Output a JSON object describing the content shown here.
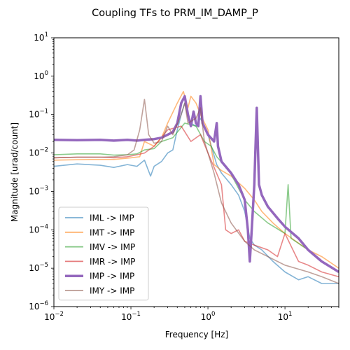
{
  "chart_data": {
    "type": "line",
    "title": "Coupling TFs to PRM_IM_DAMP_P",
    "xlabel": "Frequency [Hz]",
    "ylabel": "Magnitude [urad/count]",
    "xscale": "log",
    "yscale": "log",
    "xlim": [
      0.01,
      50
    ],
    "ylim": [
      1e-06,
      10
    ],
    "grid": false,
    "legend_position": "lower-left",
    "x_ticks": [
      {
        "value": 0.01,
        "label": "10",
        "exp": "−2"
      },
      {
        "value": 0.1,
        "label": "10",
        "exp": "−1"
      },
      {
        "value": 1,
        "label": "10",
        "exp": "0"
      },
      {
        "value": 10,
        "label": "10",
        "exp": "1"
      }
    ],
    "y_ticks": [
      {
        "value": 1e-06,
        "label": "10",
        "exp": "−6"
      },
      {
        "value": 1e-05,
        "label": "10",
        "exp": "−5"
      },
      {
        "value": 0.0001,
        "label": "10",
        "exp": "−4"
      },
      {
        "value": 0.001,
        "label": "10",
        "exp": "−3"
      },
      {
        "value": 0.01,
        "label": "10",
        "exp": "−2"
      },
      {
        "value": 0.1,
        "label": "10",
        "exp": "−1"
      },
      {
        "value": 1,
        "label": "10",
        "exp": "0"
      },
      {
        "value": 10,
        "label": "10",
        "exp": "1"
      }
    ],
    "series": [
      {
        "name": "IML -> IMP",
        "color": "#1f77b4",
        "bold": false,
        "points": [
          [
            0.01,
            0.0045
          ],
          [
            0.02,
            0.0052
          ],
          [
            0.04,
            0.0048
          ],
          [
            0.06,
            0.0042
          ],
          [
            0.09,
            0.005
          ],
          [
            0.12,
            0.0045
          ],
          [
            0.15,
            0.0065
          ],
          [
            0.18,
            0.0025
          ],
          [
            0.2,
            0.0045
          ],
          [
            0.25,
            0.006
          ],
          [
            0.3,
            0.01
          ],
          [
            0.35,
            0.012
          ],
          [
            0.4,
            0.04
          ],
          [
            0.45,
            0.1
          ],
          [
            0.5,
            0.2
          ],
          [
            0.6,
            0.06
          ],
          [
            0.7,
            0.05
          ],
          [
            0.8,
            0.08
          ],
          [
            1.0,
            0.03
          ],
          [
            1.3,
            0.005
          ],
          [
            1.5,
            0.003
          ],
          [
            2,
            0.0015
          ],
          [
            2.5,
            0.0008
          ],
          [
            3,
            0.0003
          ],
          [
            3.5,
            6e-05
          ],
          [
            4,
            4e-05
          ],
          [
            5,
            3e-05
          ],
          [
            7,
            1.5e-05
          ],
          [
            10,
            8e-06
          ],
          [
            15,
            5e-06
          ],
          [
            20,
            6e-06
          ],
          [
            30,
            4e-06
          ],
          [
            50,
            4e-06
          ]
        ]
      },
      {
        "name": "IMT -> IMP",
        "color": "#ff7f0e",
        "bold": false,
        "points": [
          [
            0.01,
            0.0065
          ],
          [
            0.03,
            0.0068
          ],
          [
            0.06,
            0.0068
          ],
          [
            0.1,
            0.0075
          ],
          [
            0.13,
            0.008
          ],
          [
            0.15,
            0.02
          ],
          [
            0.2,
            0.015
          ],
          [
            0.25,
            0.025
          ],
          [
            0.3,
            0.06
          ],
          [
            0.4,
            0.2
          ],
          [
            0.48,
            0.4
          ],
          [
            0.55,
            0.15
          ],
          [
            0.6,
            0.3
          ],
          [
            0.7,
            0.2
          ],
          [
            0.8,
            0.1
          ],
          [
            1.0,
            0.04
          ],
          [
            1.2,
            0.005
          ],
          [
            1.5,
            0.0035
          ],
          [
            2,
            0.0025
          ],
          [
            3,
            0.0012
          ],
          [
            4,
            0.0006
          ],
          [
            5,
            0.0003
          ],
          [
            7,
            0.00015
          ],
          [
            10,
            8e-05
          ],
          [
            20,
            3e-05
          ],
          [
            30,
            2e-05
          ],
          [
            50,
            1e-05
          ]
        ]
      },
      {
        "name": "IMV -> IMP",
        "color": "#2ca02c",
        "bold": false,
        "points": [
          [
            0.01,
            0.009
          ],
          [
            0.02,
            0.0095
          ],
          [
            0.04,
            0.0095
          ],
          [
            0.06,
            0.0088
          ],
          [
            0.09,
            0.009
          ],
          [
            0.12,
            0.0095
          ],
          [
            0.15,
            0.012
          ],
          [
            0.2,
            0.013
          ],
          [
            0.25,
            0.02
          ],
          [
            0.35,
            0.025
          ],
          [
            0.5,
            0.06
          ],
          [
            0.7,
            0.05
          ],
          [
            0.9,
            0.02
          ],
          [
            1.1,
            0.015
          ],
          [
            1.3,
            0.008
          ],
          [
            1.6,
            0.005
          ],
          [
            2,
            0.0028
          ],
          [
            2.5,
            0.0012
          ],
          [
            3,
            0.0006
          ],
          [
            4,
            0.0003
          ],
          [
            6,
            0.00015
          ],
          [
            10,
            8e-05
          ],
          [
            11,
            0.0015
          ],
          [
            12,
            6e-05
          ],
          [
            20,
            3e-05
          ],
          [
            30,
            1.5e-05
          ],
          [
            50,
            8e-06
          ]
        ]
      },
      {
        "name": "IMR -> IMP",
        "color": "#d62728",
        "bold": false,
        "points": [
          [
            0.01,
            0.0075
          ],
          [
            0.02,
            0.0078
          ],
          [
            0.04,
            0.0078
          ],
          [
            0.06,
            0.0075
          ],
          [
            0.09,
            0.008
          ],
          [
            0.12,
            0.009
          ],
          [
            0.15,
            0.01
          ],
          [
            0.2,
            0.015
          ],
          [
            0.3,
            0.04
          ],
          [
            0.45,
            0.05
          ],
          [
            0.6,
            0.02
          ],
          [
            0.8,
            0.03
          ],
          [
            1.0,
            0.01
          ],
          [
            1.5,
            0.0015
          ],
          [
            1.7,
            0.0001
          ],
          [
            2,
            8e-05
          ],
          [
            2.5,
            0.0001
          ],
          [
            3,
            5e-05
          ],
          [
            4,
            4e-05
          ],
          [
            6,
            3e-05
          ],
          [
            8,
            2e-05
          ],
          [
            10,
            8e-05
          ],
          [
            15,
            1.5e-05
          ],
          [
            20,
            1.2e-05
          ],
          [
            30,
            8e-06
          ],
          [
            50,
            6e-06
          ]
        ]
      },
      {
        "name": "IMP -> IMP",
        "color": "#9467bd",
        "bold": true,
        "points": [
          [
            0.01,
            0.022
          ],
          [
            0.02,
            0.0215
          ],
          [
            0.04,
            0.022
          ],
          [
            0.06,
            0.021
          ],
          [
            0.09,
            0.022
          ],
          [
            0.12,
            0.021
          ],
          [
            0.15,
            0.022
          ],
          [
            0.2,
            0.023
          ],
          [
            0.25,
            0.025
          ],
          [
            0.3,
            0.03
          ],
          [
            0.35,
            0.035
          ],
          [
            0.4,
            0.06
          ],
          [
            0.45,
            0.2
          ],
          [
            0.5,
            0.3
          ],
          [
            0.55,
            0.1
          ],
          [
            0.6,
            0.05
          ],
          [
            0.65,
            0.12
          ],
          [
            0.7,
            0.06
          ],
          [
            0.75,
            0.05
          ],
          [
            0.8,
            0.3
          ],
          [
            0.85,
            0.06
          ],
          [
            1.0,
            0.03
          ],
          [
            1.2,
            0.02
          ],
          [
            1.3,
            0.06
          ],
          [
            1.35,
            0.015
          ],
          [
            1.5,
            0.006
          ],
          [
            2,
            0.003
          ],
          [
            2.5,
            0.0015
          ],
          [
            3,
            0.0006
          ],
          [
            3.3,
            0.0001
          ],
          [
            3.5,
            1.5e-05
          ],
          [
            3.7,
            0.0001
          ],
          [
            4,
            0.0015
          ],
          [
            4.3,
            0.15
          ],
          [
            4.6,
            0.0015
          ],
          [
            5,
            0.0008
          ],
          [
            6,
            0.0004
          ],
          [
            8,
            0.0002
          ],
          [
            10,
            0.00012
          ],
          [
            15,
            6e-05
          ],
          [
            20,
            3e-05
          ],
          [
            30,
            1.5e-05
          ],
          [
            50,
            8e-06
          ]
        ]
      },
      {
        "name": "IMY -> IMP",
        "color": "#8c564b",
        "bold": false,
        "points": [
          [
            0.01,
            0.0075
          ],
          [
            0.02,
            0.0078
          ],
          [
            0.04,
            0.0078
          ],
          [
            0.06,
            0.008
          ],
          [
            0.09,
            0.009
          ],
          [
            0.11,
            0.012
          ],
          [
            0.13,
            0.04
          ],
          [
            0.15,
            0.25
          ],
          [
            0.17,
            0.03
          ],
          [
            0.2,
            0.018
          ],
          [
            0.25,
            0.02
          ],
          [
            0.3,
            0.05
          ],
          [
            0.35,
            0.03
          ],
          [
            0.45,
            0.1
          ],
          [
            0.5,
            0.2
          ],
          [
            0.55,
            0.06
          ],
          [
            0.7,
            0.08
          ],
          [
            0.8,
            0.15
          ],
          [
            0.9,
            0.02
          ],
          [
            1.0,
            0.01
          ],
          [
            1.2,
            0.003
          ],
          [
            1.5,
            0.0005
          ],
          [
            2,
            0.00015
          ],
          [
            3,
            5e-05
          ],
          [
            4,
            3e-05
          ],
          [
            6,
            2e-05
          ],
          [
            10,
            1.2e-05
          ],
          [
            20,
            8e-06
          ],
          [
            30,
            6e-06
          ],
          [
            50,
            4e-06
          ]
        ]
      }
    ]
  }
}
